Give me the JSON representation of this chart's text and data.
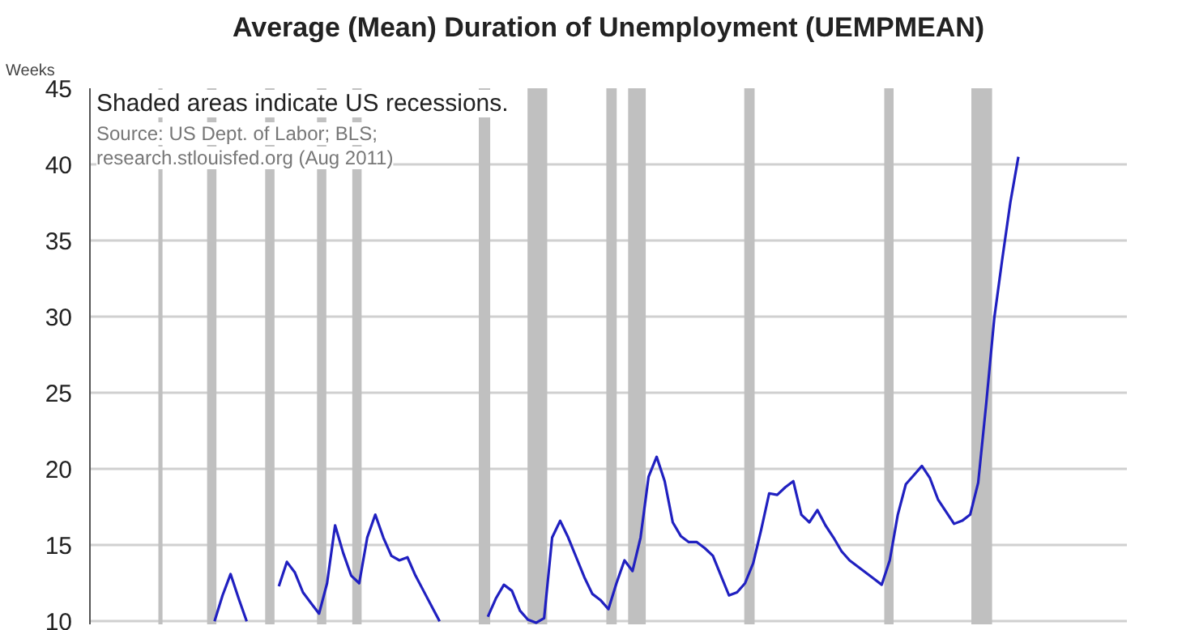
{
  "chart_data": {
    "type": "line",
    "title": "Average (Mean) Duration of Unemployment (UEMPMEAN)",
    "ylabel": "Weeks",
    "annotations": [
      "Shaded areas indicate US recessions.",
      "Source: US Dept. of Labor; BLS;",
      "research.stlouisfed.org (Aug 2011)"
    ],
    "categories": [
      null,
      null,
      null,
      null,
      null,
      null,
      null,
      null,
      null,
      null,
      null,
      null,
      null,
      null,
      null,
      null,
      null,
      null,
      null,
      null,
      null,
      null,
      null,
      null,
      null,
      null,
      null,
      null,
      null,
      null,
      null,
      null,
      null,
      null,
      null,
      null,
      null,
      null,
      null,
      null,
      null,
      null,
      null,
      null,
      null,
      null,
      null,
      null,
      null,
      null,
      null,
      null,
      null,
      null,
      null,
      null,
      null,
      null,
      null,
      null,
      null,
      null,
      null,
      null,
      null,
      null,
      null,
      null,
      null,
      null,
      null,
      null,
      null,
      null,
      null,
      null,
      null,
      null,
      null,
      null,
      null,
      null,
      null,
      null,
      null,
      null,
      null,
      null,
      null,
      null,
      null,
      null,
      null,
      null,
      null,
      null,
      null,
      null,
      null,
      null,
      null,
      null,
      null,
      null,
      null,
      null,
      null,
      null,
      null,
      null,
      null,
      null,
      null,
      null,
      null,
      null,
      null,
      null,
      null,
      null,
      null,
      null,
      null,
      null,
      null,
      null,
      null,
      null,
      null
    ],
    "series": [
      {
        "color": "#2020c0",
        "values": [
          null,
          null,
          null,
          null,
          null,
          null,
          null,
          null,
          null,
          null,
          null,
          null,
          null,
          null,
          null,
          10.0,
          11.7,
          13.1,
          11.5,
          10.0,
          null,
          null,
          null,
          null,
          null,
          null,
          null,
          null,
          null,
          null,
          null,
          null,
          null,
          null,
          null,
          null,
          null,
          null,
          null,
          null,
          null,
          null,
          null,
          null,
          null,
          null,
          null,
          null,
          null,
          null,
          null,
          null,
          null,
          null,
          null,
          null,
          null,
          null,
          null,
          null,
          null,
          null,
          null,
          null,
          null,
          null,
          null,
          null,
          null,
          null,
          null,
          null,
          null,
          null,
          null,
          null,
          null,
          null,
          null,
          null,
          null,
          null,
          null,
          null,
          null,
          null,
          null,
          null,
          null,
          null,
          null,
          null,
          null,
          null,
          null,
          null,
          null,
          null,
          null,
          null,
          null,
          null,
          null,
          null,
          null,
          null,
          null,
          null,
          null,
          null,
          null,
          null,
          null,
          null,
          null,
          null,
          null,
          null,
          null,
          null,
          null,
          null,
          null,
          null,
          null,
          null,
          null,
          null,
          null
        ]
      },
      {
        "color": "#2020c0",
        "values": [
          null,
          null,
          null,
          null,
          null,
          null,
          null,
          null,
          null,
          null,
          null,
          null,
          null,
          null,
          null,
          null,
          null,
          null,
          null,
          null,
          null,
          null,
          null,
          12.3,
          13.9,
          13.2,
          11.9,
          11.2,
          10.5,
          12.5,
          16.3,
          14.5,
          13.0,
          12.5,
          15.5,
          17.0,
          15.5,
          14.3,
          14.0,
          14.2,
          13.0,
          12.0,
          11.0,
          10.0,
          null,
          null,
          null,
          null,
          null,
          null,
          null,
          null,
          null,
          null,
          null,
          null,
          null,
          null,
          null,
          null,
          null,
          null,
          null,
          null,
          null,
          null,
          null,
          null,
          null,
          null,
          null,
          null,
          null,
          null,
          null,
          null,
          null,
          null,
          null,
          null,
          null,
          null,
          null,
          null,
          null,
          null,
          null,
          null,
          null,
          null,
          null,
          null,
          null,
          null,
          null,
          null,
          null,
          null,
          null,
          null,
          null,
          null,
          null,
          null,
          null,
          null,
          null,
          null,
          null,
          null,
          null,
          null,
          null,
          null,
          null,
          null,
          null,
          null,
          null,
          null,
          null,
          null,
          null,
          null,
          null,
          null,
          null,
          null,
          null
        ]
      },
      {
        "color": "#2020c0",
        "values": [
          null,
          null,
          null,
          null,
          null,
          null,
          null,
          null,
          null,
          null,
          null,
          null,
          null,
          null,
          null,
          null,
          null,
          null,
          null,
          null,
          null,
          null,
          null,
          null,
          null,
          null,
          null,
          null,
          null,
          null,
          null,
          null,
          null,
          null,
          null,
          null,
          null,
          null,
          null,
          null,
          null,
          null,
          null,
          null,
          null,
          null,
          null,
          null,
          null,
          10.3,
          11.5,
          12.4,
          12.0,
          10.7,
          10.1,
          9.9,
          10.2,
          15.5,
          16.6,
          15.5,
          14.2,
          12.9,
          11.8,
          11.4,
          10.8,
          12.5,
          14.0,
          13.3,
          15.5,
          19.5,
          20.8,
          19.2,
          16.5,
          15.6,
          15.2,
          15.2,
          14.8,
          14.3,
          13.0,
          11.7,
          11.9,
          12.5,
          13.8,
          16.0,
          18.4,
          18.3,
          18.8,
          19.2,
          17.0,
          16.5,
          17.3,
          16.3,
          15.5,
          14.6,
          14.0,
          13.6,
          13.2,
          12.8,
          12.4,
          14.0,
          17.0,
          19.0,
          19.6,
          20.2,
          19.4,
          18.0,
          17.2,
          16.4,
          16.6,
          17.0,
          19.1,
          24.3,
          29.9,
          33.8,
          37.5,
          40.5,
          null,
          null,
          null,
          null,
          null,
          null,
          null,
          null,
          null,
          null,
          null,
          null,
          null
        ]
      }
    ],
    "ylim": [
      9.8,
      45
    ],
    "yticks": [
      10,
      15,
      20,
      25,
      30,
      35,
      40,
      45
    ],
    "grid": "y",
    "tick_labels": "y"
  }
}
